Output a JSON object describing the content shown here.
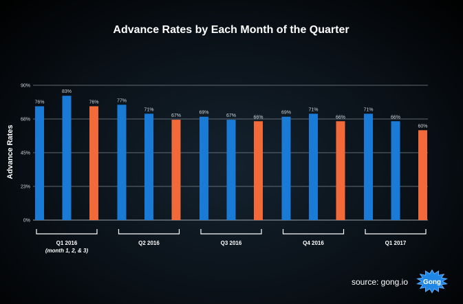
{
  "chart_data": {
    "type": "bar",
    "title": "Advance Rates by Each Month of the Quarter",
    "ylabel": "Advance Rates",
    "xlabel": "",
    "ylim": [
      0,
      90
    ],
    "yticks": [
      "0%",
      "23%",
      "45%",
      "68%",
      "90%"
    ],
    "ytick_values": [
      0,
      22.5,
      45,
      67.5,
      90
    ],
    "grid": true,
    "groups": [
      {
        "label": "Q1 2016",
        "sublabel": "(month 1, 2, & 3)",
        "values": [
          76,
          83,
          76
        ],
        "labels": [
          "76%",
          "83%",
          "76%"
        ]
      },
      {
        "label": "Q2 2016",
        "sublabel": "",
        "values": [
          77,
          71,
          67
        ],
        "labels": [
          "77%",
          "71%",
          "67%"
        ]
      },
      {
        "label": "Q3 2016",
        "sublabel": "",
        "values": [
          69,
          67,
          66
        ],
        "labels": [
          "69%",
          "67%",
          "66%"
        ]
      },
      {
        "label": "Q4 2016",
        "sublabel": "",
        "values": [
          69,
          71,
          66
        ],
        "labels": [
          "69%",
          "71%",
          "66%"
        ]
      },
      {
        "label": "Q1 2017",
        "sublabel": "",
        "values": [
          71,
          66,
          60
        ],
        "labels": [
          "71%",
          "66%",
          "60%"
        ]
      }
    ],
    "colors": {
      "month1": "#1a7bd6",
      "month2": "#1a7bd6",
      "month3": "#f26a3a"
    }
  },
  "footer": {
    "source": "source: gong.io",
    "logo_text": "Gong"
  }
}
